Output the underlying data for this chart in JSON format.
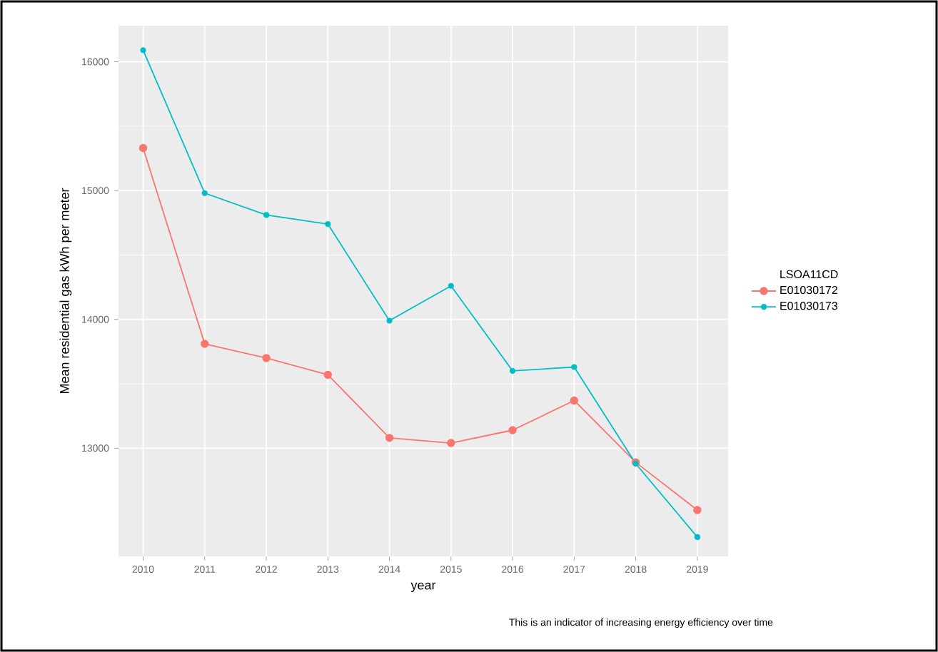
{
  "chart_data": {
    "type": "line",
    "xlabel": "year",
    "ylabel": "Mean residential gas kWh per meter",
    "legend_title": "LSOA11CD",
    "x": [
      2010,
      2011,
      2012,
      2013,
      2014,
      2015,
      2016,
      2017,
      2018,
      2019
    ],
    "series": [
      {
        "name": "E01030172",
        "color": "#f8766d",
        "values": [
          15330,
          13810,
          13700,
          13570,
          13080,
          13040,
          13140,
          13370,
          12890,
          12520
        ]
      },
      {
        "name": "E01030173",
        "color": "#00bfc4",
        "values": [
          16090,
          14980,
          14810,
          14740,
          13990,
          14260,
          13600,
          13630,
          12880,
          12310
        ]
      }
    ],
    "xlim": [
      2009.6,
      2019.5
    ],
    "xticks": [
      2010,
      2011,
      2012,
      2013,
      2014,
      2015,
      2016,
      2017,
      2018,
      2019
    ],
    "ylim": [
      12160,
      16280
    ],
    "yticks": [
      13000,
      14000,
      15000,
      16000
    ],
    "grid": true,
    "legend": "right",
    "marker": "circle",
    "line_style": "solid",
    "annotations": [
      "This is an indicator of increasing energy efficiency over time"
    ]
  }
}
